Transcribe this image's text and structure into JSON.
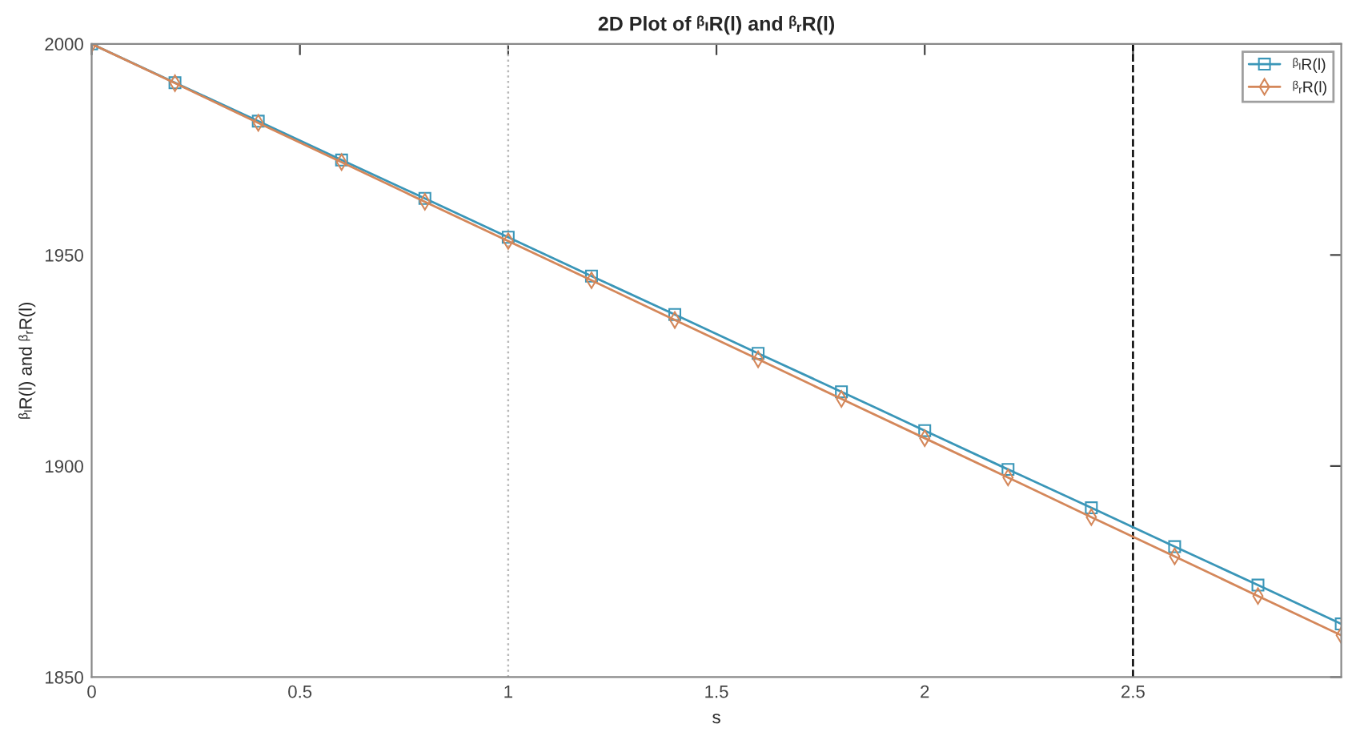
{
  "chart_data": {
    "type": "line",
    "title": "2D Plot of ᵝₗR(l) and ᵝᵣR(l)",
    "xlabel": "s",
    "ylabel": "ᵝₗR(l) and ᵝᵣR(l)",
    "x": [
      0,
      0.2,
      0.4,
      0.6,
      0.8,
      1.0,
      1.2,
      1.4,
      1.6,
      1.8,
      2.0,
      2.2,
      2.4,
      2.6,
      2.8,
      3.0
    ],
    "series": [
      {
        "name": "ᵝₗR(l)",
        "color": "#3a96b8",
        "marker": "square",
        "values": [
          2000,
          1990.8,
          1981.7,
          1972.5,
          1963.4,
          1954.2,
          1945.0,
          1935.9,
          1926.7,
          1917.6,
          1908.4,
          1899.2,
          1890.1,
          1880.9,
          1871.8,
          1862.6
        ]
      },
      {
        "name": "ᵝᵣR(l)",
        "color": "#d4875a",
        "marker": "diamond",
        "values": [
          2000,
          1990.7,
          1981.3,
          1972.0,
          1962.6,
          1953.3,
          1944.0,
          1934.6,
          1925.3,
          1915.9,
          1906.6,
          1897.3,
          1887.9,
          1878.6,
          1869.2,
          1859.9
        ]
      }
    ],
    "xlim": [
      0,
      3
    ],
    "ylim": [
      1850,
      2000
    ],
    "xticks": [
      0,
      0.5,
      1,
      1.5,
      2,
      2.5
    ],
    "yticks": [
      1850,
      1900,
      1950,
      2000
    ],
    "ref_lines": [
      {
        "axis": "x",
        "value": 1,
        "color": "#b8b8b8",
        "line_style": "dotted"
      },
      {
        "axis": "x",
        "value": 2.5,
        "color": "#000000",
        "line_style": "dashed"
      }
    ],
    "grid": false,
    "legend": "top right"
  }
}
